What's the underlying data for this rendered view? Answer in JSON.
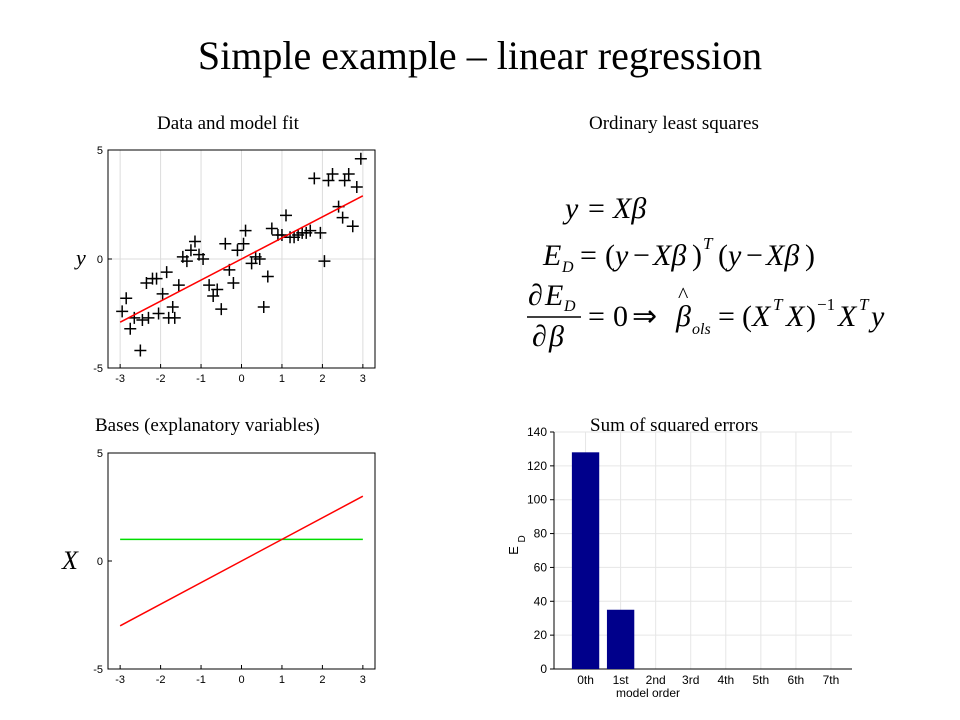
{
  "slide_title": "Simple example – linear regression",
  "panels": {
    "fit_title": "Data and model fit",
    "ols_title": "Ordinary least squares",
    "bases_title": "Bases (explanatory variables)",
    "sse_title": "Sum of squared errors"
  },
  "equations": {
    "eq1": "y = Xβ",
    "eq2": "E_D = (y − Xβ)^T (y − Xβ)",
    "eq3": "∂E_D/∂β = 0 ⇒ β̂_ols = (X^T X)^{-1} X^T y"
  },
  "chart_data": [
    {
      "type": "scatter",
      "title": "",
      "ylabel": "y",
      "xlim": [
        -3.3,
        3.3
      ],
      "ylim": [
        -5,
        5
      ],
      "xticks": [
        -3,
        -2,
        -1,
        0,
        1,
        2,
        3
      ],
      "yticks": [
        -5,
        0,
        5
      ],
      "grid": true,
      "points": [
        [
          -2.95,
          -2.4
        ],
        [
          -2.85,
          -1.8
        ],
        [
          -2.75,
          -3.2
        ],
        [
          -2.65,
          -2.7
        ],
        [
          -2.5,
          -4.2
        ],
        [
          -2.45,
          -2.8
        ],
        [
          -2.35,
          -1.1
        ],
        [
          -2.3,
          -2.7
        ],
        [
          -2.2,
          -0.9
        ],
        [
          -2.1,
          -0.9
        ],
        [
          -2.05,
          -2.5
        ],
        [
          -1.95,
          -1.6
        ],
        [
          -1.85,
          -0.6
        ],
        [
          -1.8,
          -2.7
        ],
        [
          -1.7,
          -2.2
        ],
        [
          -1.65,
          -2.7
        ],
        [
          -1.55,
          -1.2
        ],
        [
          -1.45,
          0.1
        ],
        [
          -1.35,
          -0.1
        ],
        [
          -1.25,
          0.4
        ],
        [
          -1.15,
          0.8
        ],
        [
          -1.05,
          0.2
        ],
        [
          -0.95,
          0.0
        ],
        [
          -0.8,
          -1.2
        ],
        [
          -0.7,
          -1.7
        ],
        [
          -0.6,
          -1.4
        ],
        [
          -0.5,
          -2.3
        ],
        [
          -0.4,
          0.7
        ],
        [
          -0.3,
          -0.5
        ],
        [
          -0.2,
          -1.1
        ],
        [
          -0.1,
          0.4
        ],
        [
          0.05,
          0.7
        ],
        [
          0.1,
          1.3
        ],
        [
          0.25,
          -0.2
        ],
        [
          0.35,
          0.1
        ],
        [
          0.45,
          0.0
        ],
        [
          0.55,
          -2.2
        ],
        [
          0.65,
          -0.8
        ],
        [
          0.75,
          1.4
        ],
        [
          0.9,
          1.1
        ],
        [
          1.0,
          1.1
        ],
        [
          1.1,
          2.0
        ],
        [
          1.2,
          1.0
        ],
        [
          1.3,
          1.0
        ],
        [
          1.4,
          1.1
        ],
        [
          1.5,
          1.2
        ],
        [
          1.6,
          1.2
        ],
        [
          1.7,
          1.3
        ],
        [
          1.8,
          3.7
        ],
        [
          1.95,
          1.2
        ],
        [
          2.05,
          -0.1
        ],
        [
          2.15,
          3.6
        ],
        [
          2.25,
          3.9
        ],
        [
          2.4,
          2.4
        ],
        [
          2.5,
          1.9
        ],
        [
          2.55,
          3.6
        ],
        [
          2.65,
          3.9
        ],
        [
          2.75,
          1.5
        ],
        [
          2.85,
          3.3
        ],
        [
          2.95,
          4.6
        ]
      ],
      "fit_line": {
        "x": [
          -3,
          3
        ],
        "y": [
          -2.9,
          2.9
        ],
        "color": "#ff0000"
      },
      "marker_color": "#000000"
    },
    {
      "type": "line",
      "title": "",
      "ylabel": "X",
      "xlim": [
        -3.3,
        3.3
      ],
      "ylim": [
        -5,
        5
      ],
      "xticks": [
        -3,
        -2,
        -1,
        0,
        1,
        2,
        3
      ],
      "yticks": [
        -5,
        0,
        5
      ],
      "grid": false,
      "series": [
        {
          "x": [
            -3,
            3
          ],
          "y": [
            1,
            1
          ],
          "color": "#00dd00"
        },
        {
          "x": [
            -3,
            3
          ],
          "y": [
            -3,
            3
          ],
          "color": "#ff0000"
        }
      ]
    },
    {
      "type": "bar",
      "title": "",
      "xlabel": "model order",
      "ylabel": "E_D",
      "categories": [
        "0th",
        "1st",
        "2nd",
        "3rd",
        "4th",
        "5th",
        "6th",
        "7th"
      ],
      "values": [
        128,
        35,
        0,
        0,
        0,
        0,
        0,
        0
      ],
      "ylim": [
        0,
        140
      ],
      "yticks": [
        0,
        20,
        40,
        60,
        80,
        100,
        120,
        140
      ],
      "grid": true,
      "bar_color": "#00008b"
    }
  ]
}
